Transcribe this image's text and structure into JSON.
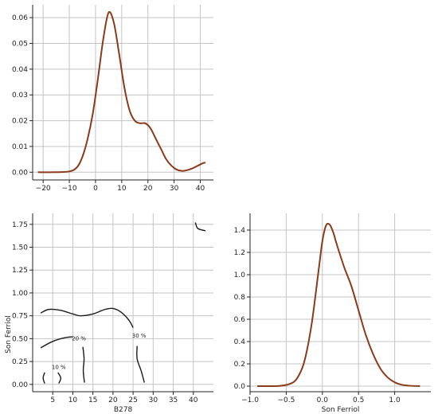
{
  "colors": {
    "curve": "#8b3a1a",
    "contour": "#1a1a1a",
    "grid": "#c4c4c4"
  },
  "chart_data": [
    {
      "id": "top_marginal",
      "type": "line",
      "xlabel": "",
      "ylabel": "",
      "grid": true,
      "xlim": [
        -24,
        45
      ],
      "ylim": [
        -0.003,
        0.065
      ],
      "xticks": [
        -20,
        -10,
        0,
        10,
        20,
        30,
        40
      ],
      "yticks": [
        0.0,
        0.01,
        0.02,
        0.03,
        0.04,
        0.05,
        0.06
      ],
      "ytick_labels": [
        "0.00",
        "0.01",
        "0.02",
        "0.03",
        "0.04",
        "0.05",
        "0.06"
      ],
      "series": [
        {
          "x": [
            -22,
            -16,
            -10,
            -7,
            -5,
            -3,
            -1,
            1,
            3,
            5,
            7,
            9,
            11,
            13,
            15,
            17,
            19,
            21,
            23,
            25,
            27,
            29,
            31,
            33,
            35,
            37,
            39,
            41,
            42
          ],
          "y": [
            0.0,
            0.0,
            0.0003,
            0.002,
            0.006,
            0.013,
            0.023,
            0.037,
            0.052,
            0.062,
            0.058,
            0.046,
            0.033,
            0.024,
            0.02,
            0.019,
            0.019,
            0.017,
            0.013,
            0.009,
            0.005,
            0.0025,
            0.001,
            0.0005,
            0.0008,
            0.0015,
            0.0025,
            0.0035,
            0.0037
          ]
        }
      ]
    },
    {
      "id": "joint_contour",
      "type": "contour",
      "xlabel": "B278",
      "ylabel": "Son Ferriol",
      "grid": true,
      "xlim": [
        0,
        45
      ],
      "ylim": [
        -0.08,
        1.87
      ],
      "xticks": [
        5,
        10,
        15,
        20,
        25,
        30,
        35,
        40
      ],
      "yticks": [
        0.0,
        0.25,
        0.5,
        0.75,
        1.0,
        1.25,
        1.5,
        1.75
      ],
      "ytick_labels": [
        "0.00",
        "0.25",
        "0.50",
        "0.75",
        "1.00",
        "1.25",
        "1.50",
        "1.75"
      ],
      "contours": [
        {
          "points": [
            [
              2,
              0.78
            ],
            [
              4,
              0.82
            ],
            [
              7,
              0.81
            ],
            [
              10,
              0.77
            ],
            [
              12,
              0.75
            ],
            [
              15,
              0.77
            ],
            [
              18,
              0.82
            ],
            [
              20,
              0.83
            ],
            [
              22,
              0.79
            ],
            [
              24,
              0.7
            ],
            [
              25,
              0.62
            ]
          ]
        },
        {
          "points": [
            [
              2,
              0.4
            ],
            [
              5,
              0.47
            ],
            [
              8,
              0.51
            ],
            [
              10,
              0.52
            ]
          ]
        },
        {
          "points": [
            [
              12.5,
              0.41
            ],
            [
              12.8,
              0.28
            ],
            [
              12.6,
              0.15
            ],
            [
              12.9,
              0.02
            ]
          ]
        },
        {
          "points": [
            [
              26,
              0.42
            ],
            [
              26,
              0.28
            ],
            [
              27,
              0.15
            ],
            [
              27.8,
              0.02
            ]
          ]
        },
        {
          "points": [
            [
              3,
              0.13
            ],
            [
              2.6,
              0.07
            ],
            [
              3,
              0.01
            ]
          ]
        },
        {
          "points": [
            [
              6.3,
              0.13
            ],
            [
              7,
              0.07
            ],
            [
              6.5,
              0.01
            ]
          ]
        },
        {
          "points": [
            [
              40.5,
              1.77
            ],
            [
              41,
              1.71
            ],
            [
              42,
              1.69
            ],
            [
              43,
              1.68
            ]
          ]
        }
      ],
      "contour_labels": [
        {
          "text": "10 %",
          "at": [
            6.5,
            0.17
          ]
        },
        {
          "text": "20 %",
          "at": [
            11.5,
            0.48
          ]
        },
        {
          "text": "30 %",
          "at": [
            26.5,
            0.51
          ]
        }
      ]
    },
    {
      "id": "right_marginal",
      "type": "line",
      "xlabel": "Son Ferriol",
      "ylabel": "",
      "grid": true,
      "xlim": [
        -1.0,
        1.5
      ],
      "ylim": [
        -0.05,
        1.55
      ],
      "xticks": [
        -1.0,
        -0.5,
        0.0,
        0.5,
        1.0
      ],
      "xtick_labels": [
        "−1.0",
        "−0.5",
        "0.0",
        "0.5",
        "1.0"
      ],
      "yticks": [
        0.0,
        0.2,
        0.4,
        0.6,
        0.8,
        1.0,
        1.2,
        1.4
      ],
      "ytick_labels": [
        "0.0",
        "0.2",
        "0.4",
        "0.6",
        "0.8",
        "1.0",
        "1.2",
        "1.4"
      ],
      "series": [
        {
          "x": [
            -0.9,
            -0.6,
            -0.45,
            -0.35,
            -0.25,
            -0.15,
            -0.05,
            0.0,
            0.05,
            0.1,
            0.15,
            0.2,
            0.3,
            0.4,
            0.5,
            0.6,
            0.7,
            0.8,
            0.9,
            1.0,
            1.1,
            1.2,
            1.35
          ],
          "y": [
            0.0,
            0.002,
            0.02,
            0.07,
            0.22,
            0.55,
            1.05,
            1.3,
            1.44,
            1.45,
            1.38,
            1.27,
            1.07,
            0.9,
            0.68,
            0.46,
            0.29,
            0.16,
            0.08,
            0.035,
            0.012,
            0.004,
            0.0
          ]
        }
      ]
    }
  ]
}
